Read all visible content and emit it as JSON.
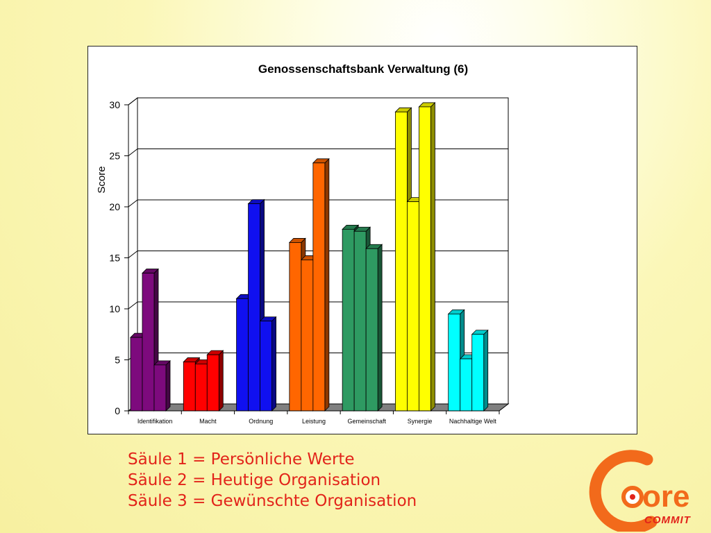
{
  "chart_data": {
    "type": "bar",
    "title": "Genossenschaftsbank Verwaltung (6)",
    "ylabel": "Score",
    "xlabel": "",
    "ylim": [
      0,
      30
    ],
    "yticks": [
      0,
      5,
      10,
      15,
      20,
      25,
      30
    ],
    "grid": true,
    "categories": [
      "Identifikation",
      "Macht",
      "Ordnung",
      "Leistung",
      "Gemeinschaft",
      "Synergie",
      "Nachhaltige Welt"
    ],
    "category_colors": [
      "#7d0a7d",
      "#ff0000",
      "#1010f0",
      "#ff6600",
      "#2e9a62",
      "#ffff00",
      "#00ffff"
    ],
    "series": [
      {
        "values": [
          7.2,
          4.8,
          11.0,
          16.5,
          17.8,
          29.3,
          9.5
        ]
      },
      {
        "values": [
          13.5,
          4.6,
          20.3,
          14.8,
          17.6,
          20.5,
          5.1
        ]
      },
      {
        "values": [
          4.5,
          5.5,
          8.8,
          24.3,
          15.9,
          29.8,
          7.5
        ]
      }
    ]
  },
  "legend": {
    "line1": "Säule 1 = Persönliche Werte",
    "line2": "Säule 2 = Heutige Organisation",
    "line3": "Säule 3 = Gewünschte Organisation"
  },
  "logo": {
    "text_main": "ore",
    "text_sub": "COMMIT",
    "accent": "#f26a1b"
  }
}
